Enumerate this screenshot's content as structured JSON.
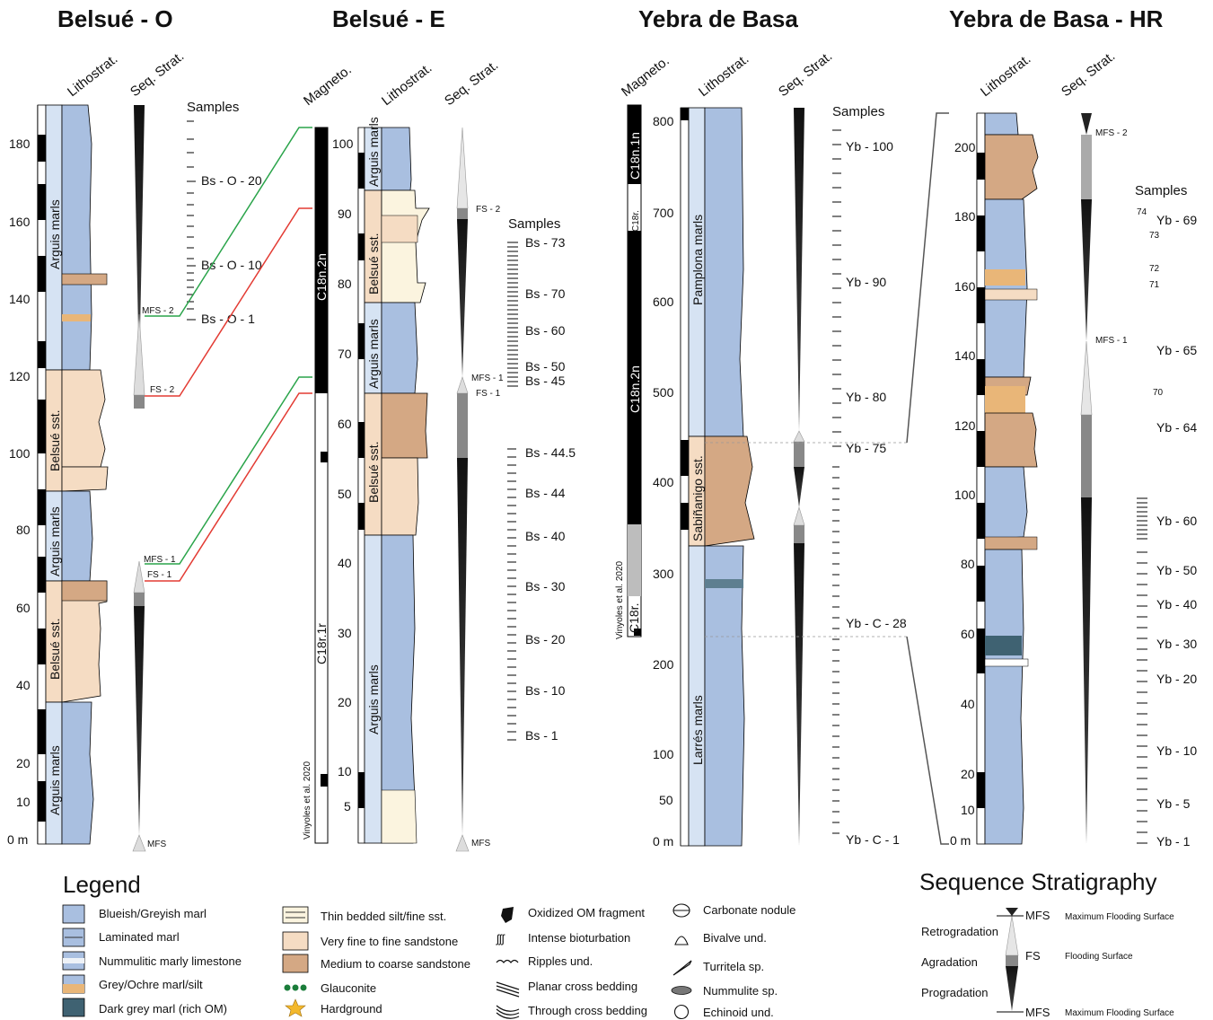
{
  "titles": {
    "belsue_o": "Belsué - O",
    "belsue_e": "Belsué - E",
    "yebra": "Yebra de Basa",
    "yebra_hr": "Yebra de Basa - HR"
  },
  "headers": {
    "magneto": "Magneto.",
    "lithostrat": "Lithostrat.",
    "seq_strat": "Seq. Strat.",
    "samples": "Samples"
  },
  "belsue_o": {
    "axis_ticks": [
      "0 m",
      "10",
      "20",
      "40",
      "60",
      "80",
      "100",
      "120",
      "140",
      "160",
      "180"
    ],
    "units": [
      "Arguis marls",
      "Belsué sst.",
      "Arguis marls",
      "Belsué sst.",
      "Arguis marls"
    ],
    "samples": [
      "Bs - O - 20",
      "Bs - O - 10",
      "Bs - O - 1"
    ],
    "surfaces": [
      "MFS - 2",
      "FS - 2",
      "MFS - 1",
      "FS - 1",
      "MFS"
    ]
  },
  "belsue_e": {
    "axis_ticks": [
      "5",
      "10",
      "20",
      "30",
      "40",
      "50",
      "60",
      "70",
      "80",
      "90",
      "100"
    ],
    "units": [
      "Arguis marls",
      "Belsué sst.",
      "Arguis marls",
      "Belsué sst.",
      "Arguis marls"
    ],
    "magneto": [
      "C18n.2n",
      "C18r.1r",
      "Vinyoles et al. 2020"
    ],
    "samples": [
      "Bs - 73",
      "Bs - 70",
      "Bs - 60",
      "Bs - 50",
      "Bs - 45",
      "Bs - 44.5",
      "Bs - 44",
      "Bs - 40",
      "Bs - 30",
      "Bs - 20",
      "Bs - 10",
      "Bs - 1"
    ],
    "surfaces": [
      "FS - 2",
      "MFS - 1",
      "FS - 1",
      "MFS"
    ]
  },
  "yebra": {
    "axis_ticks": [
      "0 m",
      "50",
      "100",
      "200",
      "300",
      "400",
      "500",
      "600",
      "700",
      "800"
    ],
    "units": [
      "Pamplona marls",
      "Sabiñanigo sst.",
      "Larrés marls"
    ],
    "magneto": [
      "C18n.1n",
      "C18r.",
      "C18n.2n",
      "C18r.",
      "Vinyoles et al. 2020"
    ],
    "samples": [
      "Yb - 100",
      "Yb - 90",
      "Yb - 80",
      "Yb - 75",
      "Yb - C - 28",
      "Yb - C - 1"
    ]
  },
  "yebra_hr": {
    "axis_ticks": [
      "0 m",
      "10",
      "20",
      "40",
      "60",
      "80",
      "100",
      "120",
      "140",
      "160",
      "180",
      "200"
    ],
    "samples": [
      "74",
      "Yb - 69",
      "73",
      "72",
      "71",
      "Yb - 65",
      "70",
      "Yb - 64",
      "Yb - 60",
      "Yb - 50",
      "Yb - 40",
      "Yb - 30",
      "Yb - 20",
      "Yb - 10",
      "Yb - 5",
      "Yb - 1"
    ],
    "surfaces": [
      "MFS - 2",
      "MFS - 1"
    ]
  },
  "legend": {
    "title": "Legend",
    "items": [
      "Blueish/Greyish marl",
      "Laminated marl",
      "Nummulitic marly limestone",
      "Grey/Ochre marl/silt",
      "Dark grey marl (rich OM)",
      "Thin bedded silt/fine sst.",
      "Very fine to fine sandstone",
      "Medium to coarse sandstone",
      "Glauconite",
      "Hardground",
      "Oxidized OM fragment",
      "Intense bioturbation",
      "Ripples und.",
      "Planar cross bedding",
      "Through cross bedding",
      "Carbonate nodule",
      "Bivalve und.",
      "Turritela sp.",
      "Nummulite sp.",
      "Echinoid und."
    ]
  },
  "seqstrat": {
    "title": "Sequence Stratigraphy",
    "retro": "Retrogradation",
    "agra": "Agradation",
    "progra": "Progradation",
    "mfs": "MFS",
    "fs": "FS",
    "mfs_desc": "Maximum Flooding  Surface",
    "fs_desc": "Flooding Surface"
  },
  "colors": {
    "marl": "#a9bfe0",
    "litho_bg": "#d6e3f3",
    "sst_fine": "#f5dcc3",
    "sst_med": "#d4a884",
    "silt": "#fbf4df",
    "green": "#2aa44a",
    "red": "#e33b33"
  }
}
